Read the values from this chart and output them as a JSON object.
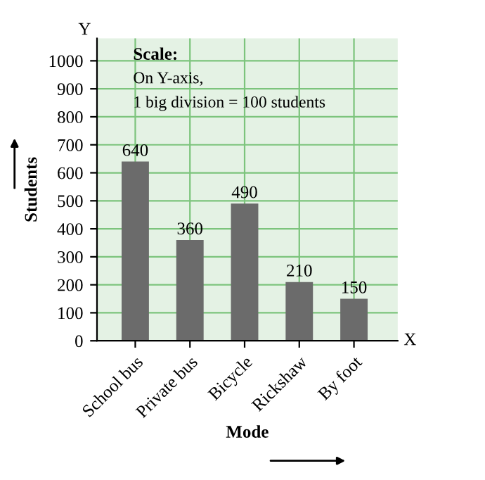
{
  "chart_data": {
    "type": "bar",
    "categories": [
      "School bus",
      "Private bus",
      "Bicycle",
      "Rickshaw",
      "By foot"
    ],
    "values": [
      640,
      360,
      490,
      210,
      150
    ],
    "color": "#6b6b6b",
    "ylim": [
      0,
      1080
    ],
    "yticks": [
      0,
      100,
      200,
      300,
      400,
      500,
      600,
      700,
      800,
      900,
      1000
    ],
    "xlabel": "Mode",
    "ylabel": "Students",
    "annotations": [
      "Scale:",
      "On Y-axis,",
      "1 big division = 100 students",
      "Y",
      "X"
    ],
    "data_labels": true,
    "grid": true
  }
}
